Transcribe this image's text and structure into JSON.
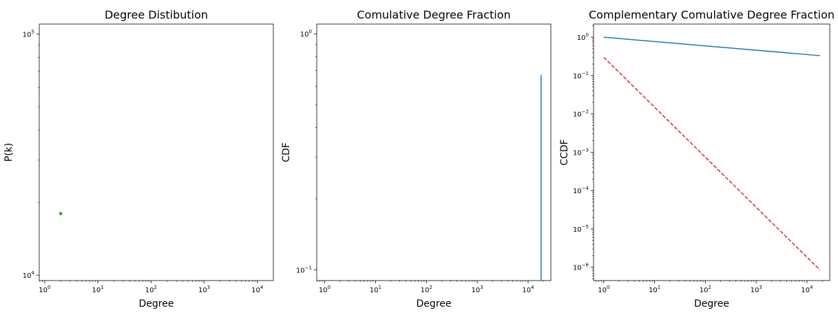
{
  "chart_data": [
    {
      "type": "scatter",
      "title": "Degree Distibution",
      "xlabel": "Degree",
      "ylabel": "P(k)",
      "xscale": "log",
      "yscale": "log",
      "xlim": [
        0.79,
        20000
      ],
      "ylim": [
        9500,
        110000
      ],
      "xticks": [
        {
          "base": "10",
          "exp": "0",
          "v": 1
        },
        {
          "base": "10",
          "exp": "1",
          "v": 10
        },
        {
          "base": "10",
          "exp": "2",
          "v": 100
        },
        {
          "base": "10",
          "exp": "3",
          "v": 1000
        },
        {
          "base": "10",
          "exp": "4",
          "v": 10000
        }
      ],
      "yticks": [
        {
          "base": "10",
          "exp": "4",
          "v": 10000
        },
        {
          "base": "10",
          "exp": "5",
          "v": 100000
        }
      ],
      "series": [
        {
          "points": [
            [
              2,
              18000
            ]
          ],
          "color": "#2ca02c",
          "marker": "o"
        }
      ]
    },
    {
      "type": "line",
      "title": "Comulative Degree Fraction",
      "xlabel": "Degree",
      "ylabel": "CDF",
      "xscale": "log",
      "yscale": "log",
      "xlim": [
        0.7,
        28000
      ],
      "ylim": [
        0.09,
        1.1
      ],
      "xticks": [
        {
          "base": "10",
          "exp": "0",
          "v": 1
        },
        {
          "base": "10",
          "exp": "1",
          "v": 10
        },
        {
          "base": "10",
          "exp": "2",
          "v": 100
        },
        {
          "base": "10",
          "exp": "3",
          "v": 1000
        },
        {
          "base": "10",
          "exp": "4",
          "v": 10000
        }
      ],
      "yticks": [
        {
          "base": "10",
          "exp": "−1",
          "v": 0.1
        },
        {
          "base": "10",
          "exp": "0",
          "v": 1
        }
      ],
      "series": [
        {
          "points": [
            [
              18000,
              0.09
            ],
            [
              18000,
              0.67
            ]
          ],
          "color": "#1f77b4",
          "dash": "none"
        }
      ]
    },
    {
      "type": "line",
      "title": "Complementary Comulative Degree Fraction",
      "xlabel": "Degree",
      "ylabel": "CCDF",
      "xscale": "log",
      "yscale": "log",
      "xlim": [
        0.63,
        28000
      ],
      "ylim": [
        4.5e-07,
        2.2
      ],
      "xticks": [
        {
          "base": "10",
          "exp": "0",
          "v": 1
        },
        {
          "base": "10",
          "exp": "1",
          "v": 10
        },
        {
          "base": "10",
          "exp": "2",
          "v": 100
        },
        {
          "base": "10",
          "exp": "3",
          "v": 1000
        },
        {
          "base": "10",
          "exp": "4",
          "v": 10000
        }
      ],
      "yticks": [
        {
          "base": "10",
          "exp": "−6",
          "v": 1e-06
        },
        {
          "base": "10",
          "exp": "−5",
          "v": 1e-05
        },
        {
          "base": "10",
          "exp": "−4",
          "v": 0.0001
        },
        {
          "base": "10",
          "exp": "−3",
          "v": 0.001
        },
        {
          "base": "10",
          "exp": "−2",
          "v": 0.01
        },
        {
          "base": "10",
          "exp": "−1",
          "v": 0.1
        },
        {
          "base": "10",
          "exp": "0",
          "v": 1
        }
      ],
      "series": [
        {
          "points": [
            [
              1,
              1.0
            ],
            [
              18000,
              0.33
            ]
          ],
          "color": "#1f77b4",
          "dash": "none"
        },
        {
          "points": [
            [
              1,
              0.3
            ],
            [
              18000,
              8.5e-07
            ]
          ],
          "color": "#d62728",
          "dash": "dashed"
        }
      ]
    }
  ]
}
